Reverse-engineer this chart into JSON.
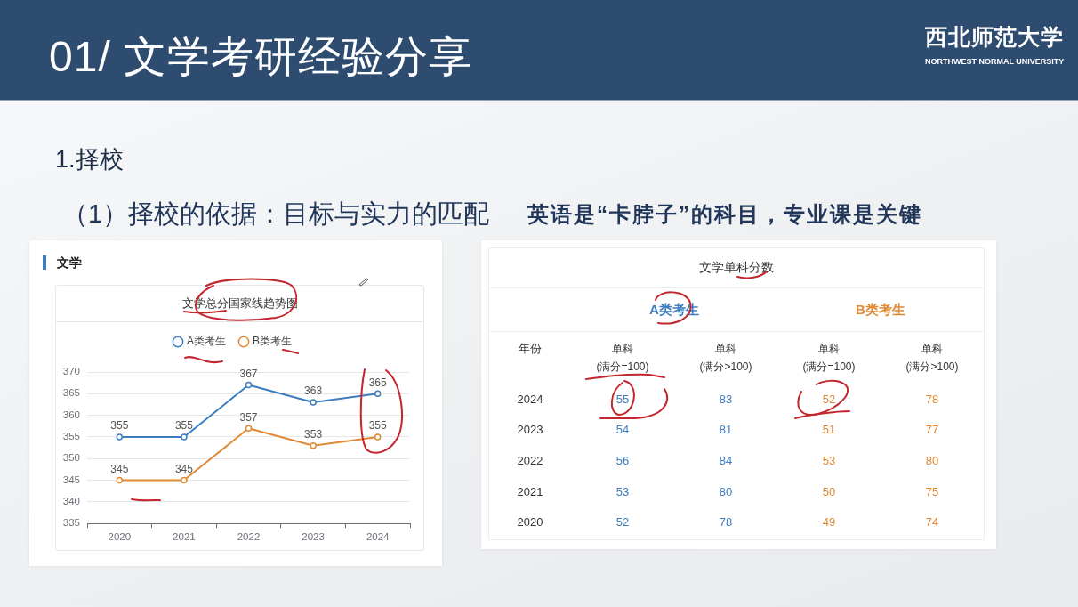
{
  "chart_data": [
    {
      "type": "other",
      "title": "01/ 文学考研经验分享",
      "annotations": [
        "1.择校",
        "（1）择校的依据：目标与实力的匹配",
        "英语是“卡脖子”的科目，专业课是关键",
        "西北师范大学",
        "NORTHWEST NORMAL UNIVERSITY"
      ]
    },
    {
      "type": "line",
      "title": "文学总分国家线趋势图",
      "annotations": [
        "文学"
      ],
      "categories": [
        "2020",
        "2021",
        "2022",
        "2023",
        "2024"
      ],
      "series": [
        {
          "name": "A类考生",
          "color": "#3c7ebf",
          "values": [
            355,
            355,
            367,
            363,
            365
          ]
        },
        {
          "name": "B类考生",
          "color": "#e08a36",
          "values": [
            345,
            345,
            357,
            353,
            355
          ]
        }
      ],
      "ylim": [
        335,
        370
      ],
      "yticks": [
        335,
        340,
        345,
        350,
        355,
        360,
        365,
        370
      ],
      "grid": "y",
      "legend": "top",
      "marker": "circle",
      "data_labels": true
    },
    {
      "type": "heatmap",
      "title": "文学单科分数",
      "ylabel": "年份",
      "annotations": [
        "A类考生",
        "B类考生"
      ],
      "categories": [
        "单科 (满分=100)",
        "单科 (满分>100)",
        "单科 (满分=100)",
        "单科 (满分>100)"
      ],
      "y_categories": [
        "2024",
        "2023",
        "2022",
        "2021",
        "2020"
      ],
      "cells": [
        [
          55,
          83,
          52,
          78
        ],
        [
          54,
          81,
          51,
          77
        ],
        [
          56,
          84,
          53,
          80
        ],
        [
          53,
          80,
          50,
          75
        ],
        [
          52,
          78,
          49,
          74
        ]
      ],
      "colors": [
        "#3c7ebf",
        "#3c7ebf",
        "#e08a36",
        "#e08a36"
      ],
      "data_labels": true
    }
  ]
}
